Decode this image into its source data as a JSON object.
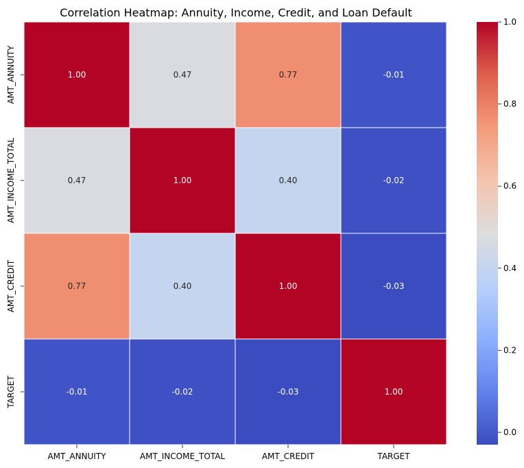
{
  "chart_data": {
    "type": "heatmap",
    "title": "Correlation Heatmap: Annuity, Income, Credit, and Loan Default",
    "x_categories": [
      "AMT_ANNUITY",
      "AMT_INCOME_TOTAL",
      "AMT_CREDIT",
      "TARGET"
    ],
    "y_categories": [
      "AMT_ANNUITY",
      "AMT_INCOME_TOTAL",
      "AMT_CREDIT",
      "TARGET"
    ],
    "values": [
      [
        1.0,
        0.47,
        0.77,
        -0.01
      ],
      [
        0.47,
        1.0,
        0.4,
        -0.02
      ],
      [
        0.77,
        0.4,
        1.0,
        -0.03
      ],
      [
        -0.01,
        -0.02,
        -0.03,
        1.0
      ]
    ],
    "labels": [
      [
        "1.00",
        "0.47",
        "0.77",
        "-0.01"
      ],
      [
        "0.47",
        "1.00",
        "0.40",
        "-0.02"
      ],
      [
        "0.77",
        "0.40",
        "1.00",
        "-0.03"
      ],
      [
        "-0.01",
        "-0.02",
        "-0.03",
        "1.00"
      ]
    ],
    "colormap": "coolwarm",
    "vmin": -0.03,
    "vmax": 1.0,
    "colorbar_ticks": [
      0.0,
      0.2,
      0.4,
      0.6,
      0.8,
      1.0
    ],
    "colorbar_tick_labels": [
      "0.0",
      "0.2",
      "0.4",
      "0.6",
      "0.8",
      "1.0"
    ],
    "cell_border_color": "#ffffff",
    "colorbar": "right"
  }
}
